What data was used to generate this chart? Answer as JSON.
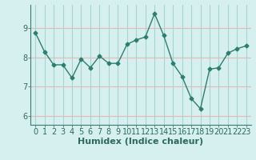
{
  "x": [
    0,
    1,
    2,
    3,
    4,
    5,
    6,
    7,
    8,
    9,
    10,
    11,
    12,
    13,
    14,
    15,
    16,
    17,
    18,
    19,
    20,
    21,
    22,
    23
  ],
  "y": [
    8.85,
    8.2,
    7.75,
    7.75,
    7.3,
    7.95,
    7.65,
    8.05,
    7.8,
    7.8,
    8.45,
    8.6,
    8.7,
    9.5,
    8.75,
    7.8,
    7.35,
    6.6,
    6.25,
    7.6,
    7.65,
    8.15,
    8.3,
    8.4
  ],
  "line_color": "#2e7d6e",
  "marker": "D",
  "marker_size": 2.5,
  "bg_color": "#d6f0ef",
  "hgrid_color": "#e8b8b8",
  "vgrid_color": "#a8d4d0",
  "axis_color": "#3a7a70",
  "tick_color": "#2e6860",
  "xlabel": "Humidex (Indice chaleur)",
  "xlabel_fontsize": 8,
  "tick_fontsize": 7,
  "ylim": [
    5.7,
    9.8
  ],
  "xlim": [
    -0.5,
    23.5
  ],
  "yticks": [
    6,
    7,
    8,
    9
  ],
  "xticks": [
    0,
    1,
    2,
    3,
    4,
    5,
    6,
    7,
    8,
    9,
    10,
    11,
    12,
    13,
    14,
    15,
    16,
    17,
    18,
    19,
    20,
    21,
    22,
    23
  ],
  "line_width": 1.0
}
